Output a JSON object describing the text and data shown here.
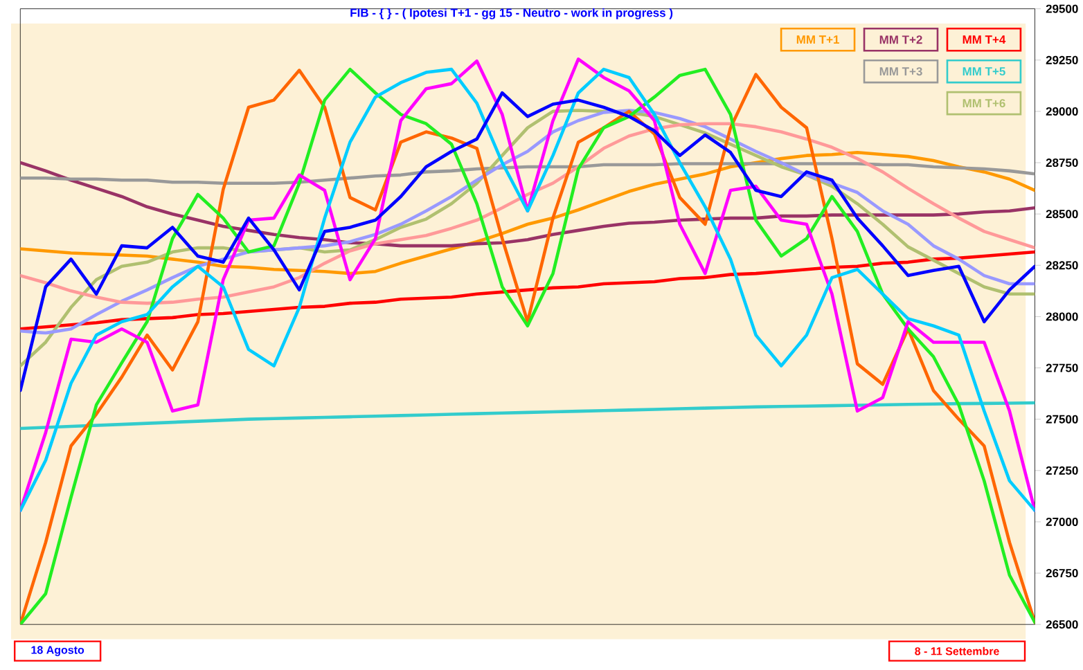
{
  "chart_data": {
    "type": "line",
    "title": "FIB - { } - ( Ipotesi T+1 - gg 15 - Neutro - work in progress )",
    "categories": [
      null,
      null,
      null,
      null,
      null,
      null,
      null,
      null,
      null,
      null,
      null,
      null,
      null,
      null,
      null,
      null,
      null,
      null,
      null,
      null,
      null,
      null,
      null,
      null,
      null,
      null,
      null,
      null,
      null,
      null,
      null,
      null,
      null,
      null,
      null,
      null,
      null,
      null,
      null,
      null,
      null
    ],
    "series": [
      {
        "name": "MM T+1",
        "color": "#ff9900",
        "values": [
          28330,
          28320,
          28310,
          28305,
          28300,
          28295,
          28280,
          28265,
          28245,
          28240,
          28230,
          28225,
          28220,
          28210,
          28220,
          28260,
          28295,
          28330,
          28365,
          28405,
          28450,
          28480,
          28520,
          28565,
          28610,
          28645,
          28670,
          28695,
          28730,
          28750,
          28770,
          28785,
          28790,
          28800,
          28790,
          28780,
          28760,
          28730,
          28705,
          28670,
          28615
        ]
      },
      {
        "name": "MM T+2",
        "color": "#993366",
        "values": [
          28750,
          28710,
          28665,
          28625,
          28585,
          28535,
          28500,
          28470,
          28440,
          28420,
          28400,
          28385,
          28375,
          28360,
          28355,
          28345,
          28345,
          28345,
          28355,
          28360,
          28375,
          28400,
          28420,
          28440,
          28455,
          28460,
          28470,
          28475,
          28480,
          28480,
          28490,
          28490,
          28495,
          28495,
          28495,
          28495,
          28495,
          28500,
          28510,
          28515,
          28530
        ]
      },
      {
        "name": "MM T+4",
        "color": "#ff0000",
        "values": [
          27940,
          27950,
          27960,
          27970,
          27985,
          27990,
          27995,
          28010,
          28015,
          28025,
          28035,
          28045,
          28050,
          28065,
          28070,
          28085,
          28090,
          28095,
          28110,
          28120,
          28130,
          28140,
          28145,
          28160,
          28165,
          28170,
          28185,
          28190,
          28205,
          28210,
          28220,
          28230,
          28240,
          28245,
          28260,
          28265,
          28280,
          28285,
          28295,
          28305,
          28315
        ]
      },
      {
        "name": "MM T+3",
        "color": "#999999",
        "values": [
          28675,
          28675,
          28670,
          28670,
          28665,
          28665,
          28655,
          28655,
          28650,
          28650,
          28650,
          28655,
          28665,
          28675,
          28685,
          28690,
          28705,
          28710,
          28720,
          28725,
          28730,
          28730,
          28730,
          28740,
          28740,
          28740,
          28745,
          28745,
          28745,
          28745,
          28745,
          28745,
          28745,
          28745,
          28740,
          28740,
          28730,
          28725,
          28720,
          28710,
          28695
        ]
      },
      {
        "name": "MM T+5",
        "color": "#33cccc",
        "values": [
          27455,
          27460,
          27465,
          27470,
          27475,
          27480,
          27485,
          27490,
          27495,
          27500,
          27503,
          27506,
          27509,
          27512,
          27515,
          27518,
          27521,
          27524,
          27527,
          27530,
          27533,
          27536,
          27539,
          27542,
          27545,
          27548,
          27551,
          27554,
          27557,
          27560,
          27562,
          27564,
          27566,
          27568,
          27570,
          27572,
          27574,
          27576,
          27577,
          27578,
          27580
        ]
      },
      {
        "name": "MM T+6",
        "color": "#b0c070",
        "values": [
          27760,
          27875,
          28045,
          28180,
          28245,
          28265,
          28315,
          28335,
          28335,
          28315,
          28325,
          28335,
          28315,
          28325,
          28375,
          28435,
          28475,
          28550,
          28650,
          28785,
          28920,
          29000,
          29005,
          29000,
          28995,
          28975,
          28935,
          28895,
          28840,
          28785,
          28730,
          28690,
          28635,
          28550,
          28450,
          28340,
          28275,
          28210,
          28145,
          28110,
          28110
        ]
      },
      {
        "color": "#9999ff",
        "values": [
          27930,
          27920,
          27940,
          28010,
          28075,
          28130,
          28190,
          28245,
          28280,
          28315,
          28325,
          28335,
          28345,
          28365,
          28400,
          28450,
          28515,
          28585,
          28665,
          28740,
          28805,
          28900,
          28955,
          28995,
          29005,
          28995,
          28965,
          28925,
          28865,
          28805,
          28750,
          28690,
          28650,
          28605,
          28515,
          28450,
          28345,
          28280,
          28200,
          28160,
          28160
        ]
      },
      {
        "color": "#ff9999",
        "values": [
          28200,
          28165,
          28125,
          28095,
          28070,
          28065,
          28070,
          28085,
          28095,
          28120,
          28145,
          28190,
          28260,
          28320,
          28355,
          28375,
          28395,
          28430,
          28470,
          28530,
          28595,
          28650,
          28730,
          28820,
          28880,
          28915,
          28935,
          28940,
          28940,
          28925,
          28900,
          28865,
          28825,
          28770,
          28705,
          28625,
          28550,
          28480,
          28415,
          28375,
          28335
        ]
      },
      {
        "color": "#ff6600",
        "values": [
          26500,
          26900,
          27370,
          27525,
          27705,
          27910,
          27740,
          27975,
          28620,
          29020,
          29055,
          29200,
          29020,
          28580,
          28520,
          28850,
          28900,
          28870,
          28820,
          28380,
          27975,
          28480,
          28850,
          28920,
          29000,
          28890,
          28580,
          28450,
          28920,
          29180,
          29020,
          28920,
          28380,
          27770,
          27670,
          27940,
          27640,
          27500,
          27370,
          26900,
          26510
        ]
      },
      {
        "color": "#22ee22",
        "values": [
          26500,
          26650,
          27120,
          27570,
          27775,
          27975,
          28380,
          28595,
          28480,
          28315,
          28345,
          28650,
          29055,
          29205,
          29090,
          28985,
          28940,
          28840,
          28550,
          28145,
          27955,
          28210,
          28720,
          28920,
          28975,
          29070,
          29175,
          29205,
          28985,
          28470,
          28295,
          28380,
          28585,
          28415,
          28110,
          27940,
          27805,
          27570,
          27200,
          26740,
          26510
        ]
      },
      {
        "color": "#ff00ff",
        "values": [
          27055,
          27435,
          27890,
          27875,
          27940,
          27875,
          27540,
          27570,
          28180,
          28470,
          28480,
          28690,
          28615,
          28180,
          28380,
          28955,
          29110,
          29135,
          29245,
          28985,
          28515,
          28955,
          29255,
          29165,
          29100,
          28955,
          28450,
          28210,
          28615,
          28635,
          28470,
          28450,
          28110,
          27540,
          27605,
          27975,
          27875,
          27875,
          27875,
          27540,
          27055
        ]
      },
      {
        "color": "#00ccff",
        "values": [
          27055,
          27300,
          27675,
          27910,
          27975,
          28010,
          28145,
          28245,
          28145,
          27840,
          27760,
          28045,
          28480,
          28850,
          29070,
          29140,
          29190,
          29205,
          29040,
          28750,
          28515,
          28785,
          29090,
          29205,
          29165,
          28985,
          28750,
          28535,
          28280,
          27910,
          27760,
          27910,
          28190,
          28230,
          28110,
          27990,
          27955,
          27910,
          27540,
          27200,
          27055
        ]
      },
      {
        "color": "#0000ff",
        "values": [
          27640,
          28145,
          28280,
          28110,
          28345,
          28335,
          28435,
          28295,
          28265,
          28480,
          28325,
          28130,
          28415,
          28435,
          28470,
          28585,
          28730,
          28805,
          28865,
          29090,
          28975,
          29035,
          29055,
          29020,
          28975,
          28905,
          28785,
          28885,
          28800,
          28615,
          28585,
          28705,
          28665,
          28480,
          28345,
          28200,
          28225,
          28245,
          27975,
          28130,
          28245
        ]
      }
    ],
    "ylim": [
      26500,
      29500
    ],
    "yticks": [
      26500,
      26750,
      27000,
      27250,
      27500,
      27750,
      28000,
      28250,
      28500,
      28750,
      29000,
      29250,
      29500
    ],
    "tick_labels": "y",
    "legend": "top right",
    "annotations": [
      "18 Agosto",
      "8 - 11 Settembre"
    ]
  }
}
